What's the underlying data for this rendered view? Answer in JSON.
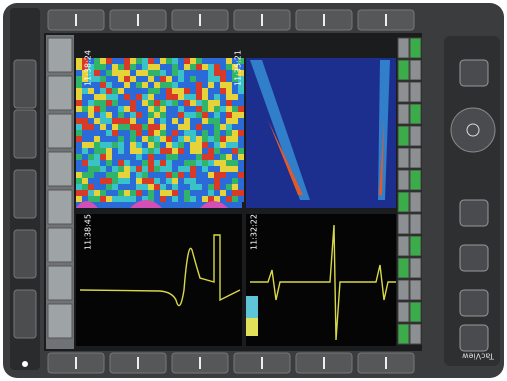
{
  "brand": "TacView",
  "panes": [
    {
      "time": "11:38:24"
    },
    {
      "time": "11:35:21"
    },
    {
      "time": "11:38:45"
    },
    {
      "time": "11:32:22"
    }
  ]
}
